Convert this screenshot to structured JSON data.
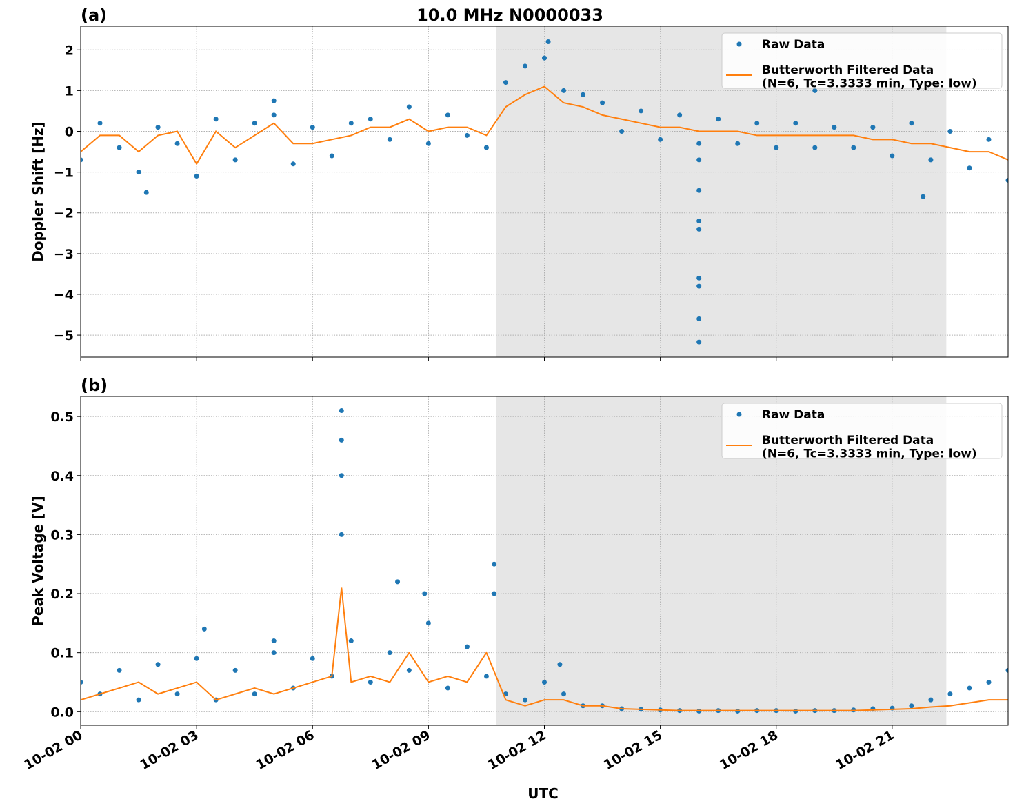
{
  "chart_data": [
    {
      "type": "line",
      "title": "10.0 MHz N0000033",
      "panel_label": "(a)",
      "ylabel": "Doppler Shift [Hz]",
      "xlim": [
        0,
        24
      ],
      "xticks": [
        0,
        3,
        6,
        9,
        12,
        15,
        18,
        21
      ],
      "ylim": [
        -5.54,
        2.58
      ],
      "yticks": [
        {
          "value": -5,
          "label": "−5"
        },
        {
          "value": -4,
          "label": "−4"
        },
        {
          "value": -3,
          "label": "−3"
        },
        {
          "value": -2,
          "label": "−2"
        },
        {
          "value": -1,
          "label": "−1"
        },
        0,
        1,
        2
      ],
      "grid": true,
      "legend": "upper right",
      "shaded_span": [
        10.75,
        22.4
      ],
      "shade_color": "#e6e6e6",
      "series": [
        {
          "name": "Raw Data",
          "mode": "markers",
          "color": "#1f77b4",
          "x": [
            0,
            0.5,
            1,
            1.5,
            2,
            2.5,
            3,
            3.5,
            4,
            4.5,
            5,
            5.5,
            6,
            6.5,
            7,
            7.5,
            8,
            8.5,
            9,
            9.5,
            10,
            10.5,
            11,
            11.5,
            12,
            12.5,
            13,
            13.5,
            14,
            14.5,
            15,
            15.5,
            16,
            16.5,
            17,
            17.5,
            18,
            18.5,
            19,
            19.5,
            20,
            20.5,
            21,
            21.5,
            22,
            22.5,
            23,
            23.5,
            24,
            12.1,
            16,
            16,
            16,
            16,
            16,
            16,
            16,
            16,
            5,
            1.7,
            21.8,
            19
          ],
          "values": [
            -0.7,
            0.2,
            -0.4,
            -1.0,
            0.1,
            -0.3,
            -1.1,
            0.3,
            -0.7,
            0.2,
            0.4,
            -0.8,
            0.1,
            -0.6,
            0.2,
            0.3,
            -0.2,
            0.6,
            -0.3,
            0.4,
            -0.1,
            -0.4,
            1.2,
            1.6,
            1.8,
            1.0,
            0.9,
            0.7,
            0.0,
            0.5,
            -0.2,
            0.4,
            -0.3,
            0.3,
            -0.3,
            0.2,
            -0.4,
            0.2,
            -0.4,
            0.1,
            -0.4,
            0.1,
            -0.6,
            0.2,
            -0.7,
            0.0,
            -0.9,
            -0.2,
            -1.2,
            2.2,
            -5.17,
            -4.6,
            -3.8,
            -3.6,
            -2.4,
            -2.2,
            -1.45,
            -0.7,
            0.75,
            -1.5,
            -1.6,
            1.0
          ]
        },
        {
          "name": "Butterworth Filtered Data\n(N=6, Tc=3.3333 min, Type: low)",
          "mode": "line",
          "color": "#ff7f0e",
          "x": [
            0,
            0.5,
            1,
            1.5,
            2,
            2.5,
            3,
            3.5,
            4,
            4.5,
            5,
            5.5,
            6,
            6.5,
            7,
            7.5,
            8,
            8.5,
            9,
            9.5,
            10,
            10.5,
            11,
            11.5,
            12,
            12.5,
            13,
            13.5,
            14,
            14.5,
            15,
            15.5,
            16,
            16.5,
            17,
            17.5,
            18,
            18.5,
            19,
            19.5,
            20,
            20.5,
            21,
            21.5,
            22,
            22.5,
            23,
            23.5,
            24
          ],
          "values": [
            -0.5,
            -0.1,
            -0.1,
            -0.5,
            -0.1,
            0.0,
            -0.8,
            0.0,
            -0.4,
            -0.1,
            0.2,
            -0.3,
            -0.3,
            -0.2,
            -0.1,
            0.1,
            0.1,
            0.3,
            0.0,
            0.1,
            0.1,
            -0.1,
            0.6,
            0.9,
            1.1,
            0.7,
            0.6,
            0.4,
            0.3,
            0.2,
            0.1,
            0.1,
            0.0,
            0.0,
            0.0,
            -0.1,
            -0.1,
            -0.1,
            -0.1,
            -0.1,
            -0.1,
            -0.2,
            -0.2,
            -0.3,
            -0.3,
            -0.4,
            -0.5,
            -0.5,
            -0.7
          ]
        }
      ]
    },
    {
      "type": "line",
      "panel_label": "(b)",
      "ylabel": "Peak Voltage [V]",
      "xlabel": "UTC",
      "xlim": [
        0,
        24
      ],
      "xticks": [
        {
          "value": 0,
          "label": "10-02 00"
        },
        {
          "value": 3,
          "label": "10-02 03"
        },
        {
          "value": 6,
          "label": "10-02 06"
        },
        {
          "value": 9,
          "label": "10-02 09"
        },
        {
          "value": 12,
          "label": "10-02 12"
        },
        {
          "value": 15,
          "label": "10-02 15"
        },
        {
          "value": 18,
          "label": "10-02 18"
        },
        {
          "value": 21,
          "label": "10-02 21"
        }
      ],
      "ylim": [
        -0.023,
        0.534
      ],
      "yticks": [
        {
          "value": 0,
          "label": "0.0"
        },
        0.1,
        0.2,
        0.3,
        0.4,
        0.5
      ],
      "grid": true,
      "legend": "upper right",
      "shaded_span": [
        10.75,
        22.4
      ],
      "shade_color": "#e6e6e6",
      "series": [
        {
          "name": "Raw Data",
          "mode": "markers",
          "color": "#1f77b4",
          "x": [
            0,
            0.5,
            1,
            1.5,
            2,
            2.5,
            3,
            3.5,
            4,
            4.5,
            5,
            5.5,
            6,
            6.5,
            7,
            7.5,
            8,
            8.5,
            9,
            9.5,
            10,
            10.5,
            11,
            11.5,
            12,
            12.5,
            13,
            13.5,
            14,
            14.5,
            15,
            15.5,
            16,
            16.5,
            17,
            17.5,
            18,
            18.5,
            19,
            19.5,
            20,
            20.5,
            21,
            21.5,
            22,
            22.5,
            23,
            23.5,
            24,
            6.75,
            6.75,
            6.75,
            6.75,
            10.7,
            10.7,
            8.2,
            8.9,
            5.0,
            3.2,
            12.4
          ],
          "values": [
            0.05,
            0.03,
            0.07,
            0.02,
            0.08,
            0.03,
            0.09,
            0.02,
            0.07,
            0.03,
            0.1,
            0.04,
            0.09,
            0.06,
            0.12,
            0.05,
            0.1,
            0.07,
            0.15,
            0.04,
            0.11,
            0.06,
            0.03,
            0.02,
            0.05,
            0.03,
            0.01,
            0.01,
            0.005,
            0.004,
            0.003,
            0.002,
            0.001,
            0.002,
            0.001,
            0.002,
            0.002,
            0.001,
            0.002,
            0.002,
            0.003,
            0.005,
            0.006,
            0.01,
            0.02,
            0.03,
            0.04,
            0.05,
            0.07,
            0.51,
            0.46,
            0.4,
            0.3,
            0.25,
            0.2,
            0.22,
            0.2,
            0.12,
            0.14,
            0.08
          ]
        },
        {
          "name": "Butterworth Filtered Data\n(N=6, Tc=3.3333 min, Type: low)",
          "mode": "line",
          "color": "#ff7f0e",
          "x": [
            0,
            0.5,
            1,
            1.5,
            2,
            2.5,
            3,
            3.5,
            4,
            4.5,
            5,
            5.5,
            6,
            6.5,
            6.75,
            7,
            7.5,
            8,
            8.5,
            9,
            9.5,
            10,
            10.5,
            11,
            11.5,
            12,
            12.5,
            13,
            13.5,
            14,
            14.5,
            15,
            15.5,
            16,
            16.5,
            17,
            17.5,
            18,
            18.5,
            19,
            19.5,
            20,
            20.5,
            21,
            21.5,
            22,
            22.5,
            23,
            23.5,
            24
          ],
          "values": [
            0.02,
            0.03,
            0.04,
            0.05,
            0.03,
            0.04,
            0.05,
            0.02,
            0.03,
            0.04,
            0.03,
            0.04,
            0.05,
            0.06,
            0.21,
            0.05,
            0.06,
            0.05,
            0.1,
            0.05,
            0.06,
            0.05,
            0.1,
            0.02,
            0.01,
            0.02,
            0.02,
            0.01,
            0.01,
            0.005,
            0.004,
            0.003,
            0.002,
            0.002,
            0.002,
            0.002,
            0.002,
            0.002,
            0.002,
            0.002,
            0.002,
            0.002,
            0.003,
            0.004,
            0.005,
            0.008,
            0.01,
            0.015,
            0.02,
            0.02
          ]
        }
      ]
    }
  ]
}
